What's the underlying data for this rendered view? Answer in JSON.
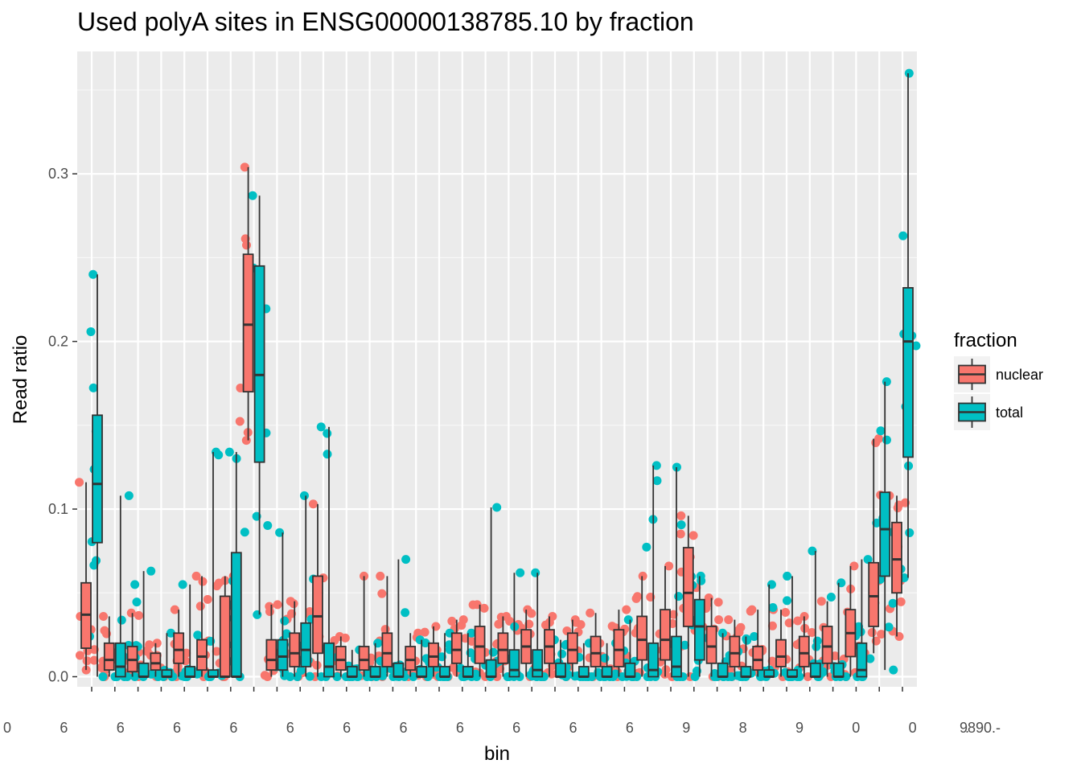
{
  "chart_data": {
    "type": "box",
    "title": "Used polyA sites in ENSG00000138785.10 by fraction",
    "xlabel": "bin",
    "ylabel": "Read ratio",
    "ylim": [
      -0.006,
      0.373
    ],
    "yticks": [
      0.0,
      0.1,
      0.2,
      0.3
    ],
    "ytick_labels": [
      "0.0",
      "0.1",
      "0.2",
      "0.3"
    ],
    "grid": true,
    "legend": {
      "title": "fraction",
      "position": "right",
      "entries": [
        {
          "name": "nuclear",
          "color": "#F8766D"
        },
        {
          "name": "total",
          "color": "#00BFC4"
        }
      ]
    },
    "bin_count": 36,
    "xtick_labels_overlapped": [
      "0",
      "6",
      "6",
      "6",
      "6",
      "6",
      "6",
      "6",
      "6",
      "6",
      "6",
      "6",
      "9",
      "8",
      "9",
      "0",
      "0",
      "."
    ],
    "xtick_label_tail": "9890.-",
    "series": [
      {
        "name": "nuclear",
        "color": "#F8766D",
        "boxes": [
          {
            "bin": 1,
            "q1": 0.017,
            "median": 0.037,
            "q3": 0.056,
            "low": 0.004,
            "high": 0.116
          },
          {
            "bin": 2,
            "q1": 0.004,
            "median": 0.01,
            "q3": 0.02,
            "low": 0.0,
            "high": 0.036
          },
          {
            "bin": 3,
            "q1": 0.003,
            "median": 0.01,
            "q3": 0.018,
            "low": 0.0,
            "high": 0.038
          },
          {
            "bin": 4,
            "q1": 0.004,
            "median": 0.008,
            "q3": 0.014,
            "low": 0.0,
            "high": 0.02
          },
          {
            "bin": 5,
            "q1": 0.008,
            "median": 0.016,
            "q3": 0.026,
            "low": 0.0,
            "high": 0.04
          },
          {
            "bin": 6,
            "q1": 0.004,
            "median": 0.012,
            "q3": 0.022,
            "low": 0.0,
            "high": 0.06
          },
          {
            "bin": 7,
            "q1": 0.0,
            "median": 0.0,
            "q3": 0.048,
            "low": 0.0,
            "high": 0.06
          },
          {
            "bin": 8,
            "q1": 0.17,
            "median": 0.21,
            "q3": 0.252,
            "low": 0.141,
            "high": 0.304
          },
          {
            "bin": 9,
            "q1": 0.004,
            "median": 0.01,
            "q3": 0.022,
            "low": 0.0,
            "high": 0.043
          },
          {
            "bin": 10,
            "q1": 0.006,
            "median": 0.014,
            "q3": 0.026,
            "low": 0.0,
            "high": 0.045
          },
          {
            "bin": 11,
            "q1": 0.014,
            "median": 0.036,
            "q3": 0.06,
            "low": 0.0,
            "high": 0.103
          },
          {
            "bin": 12,
            "q1": 0.004,
            "median": 0.01,
            "q3": 0.018,
            "low": 0.0,
            "high": 0.024
          },
          {
            "bin": 13,
            "q1": 0.004,
            "median": 0.01,
            "q3": 0.018,
            "low": 0.0,
            "high": 0.06
          },
          {
            "bin": 14,
            "q1": 0.006,
            "median": 0.014,
            "q3": 0.026,
            "low": 0.0,
            "high": 0.06
          },
          {
            "bin": 15,
            "q1": 0.004,
            "median": 0.01,
            "q3": 0.018,
            "low": 0.0,
            "high": 0.026
          },
          {
            "bin": 16,
            "q1": 0.006,
            "median": 0.012,
            "q3": 0.02,
            "low": 0.0,
            "high": 0.03
          },
          {
            "bin": 17,
            "q1": 0.008,
            "median": 0.016,
            "q3": 0.026,
            "low": 0.0,
            "high": 0.034
          },
          {
            "bin": 18,
            "q1": 0.008,
            "median": 0.018,
            "q3": 0.03,
            "low": 0.0,
            "high": 0.043
          },
          {
            "bin": 19,
            "q1": 0.008,
            "median": 0.016,
            "q3": 0.026,
            "low": 0.0,
            "high": 0.036
          },
          {
            "bin": 20,
            "q1": 0.008,
            "median": 0.018,
            "q3": 0.028,
            "low": 0.0,
            "high": 0.04
          },
          {
            "bin": 21,
            "q1": 0.008,
            "median": 0.018,
            "q3": 0.028,
            "low": 0.0,
            "high": 0.036
          },
          {
            "bin": 22,
            "q1": 0.008,
            "median": 0.016,
            "q3": 0.026,
            "low": 0.0,
            "high": 0.034
          },
          {
            "bin": 23,
            "q1": 0.006,
            "median": 0.014,
            "q3": 0.024,
            "low": 0.0,
            "high": 0.038
          },
          {
            "bin": 24,
            "q1": 0.006,
            "median": 0.016,
            "q3": 0.028,
            "low": 0.0,
            "high": 0.04
          },
          {
            "bin": 25,
            "q1": 0.01,
            "median": 0.022,
            "q3": 0.036,
            "low": 0.0,
            "high": 0.06
          },
          {
            "bin": 26,
            "q1": 0.01,
            "median": 0.022,
            "q3": 0.04,
            "low": 0.0,
            "high": 0.066
          },
          {
            "bin": 27,
            "q1": 0.03,
            "median": 0.05,
            "q3": 0.077,
            "low": 0.0,
            "high": 0.096
          },
          {
            "bin": 28,
            "q1": 0.008,
            "median": 0.018,
            "q3": 0.03,
            "low": 0.0,
            "high": 0.047
          },
          {
            "bin": 29,
            "q1": 0.006,
            "median": 0.014,
            "q3": 0.024,
            "low": 0.0,
            "high": 0.034
          },
          {
            "bin": 30,
            "q1": 0.004,
            "median": 0.01,
            "q3": 0.018,
            "low": 0.0,
            "high": 0.04
          },
          {
            "bin": 31,
            "q1": 0.006,
            "median": 0.012,
            "q3": 0.022,
            "low": 0.0,
            "high": 0.04
          },
          {
            "bin": 32,
            "q1": 0.006,
            "median": 0.014,
            "q3": 0.024,
            "low": 0.0,
            "high": 0.036
          },
          {
            "bin": 33,
            "q1": 0.008,
            "median": 0.018,
            "q3": 0.03,
            "low": 0.0,
            "high": 0.045
          },
          {
            "bin": 34,
            "q1": 0.012,
            "median": 0.026,
            "q3": 0.04,
            "low": 0.0,
            "high": 0.066
          },
          {
            "bin": 35,
            "q1": 0.03,
            "median": 0.048,
            "q3": 0.068,
            "low": 0.014,
            "high": 0.142
          },
          {
            "bin": 36,
            "q1": 0.05,
            "median": 0.07,
            "q3": 0.092,
            "low": 0.024,
            "high": 0.108
          }
        ]
      },
      {
        "name": "total",
        "color": "#00BFC4",
        "boxes": [
          {
            "bin": 1,
            "q1": 0.08,
            "median": 0.115,
            "q3": 0.156,
            "low": 0.0,
            "high": 0.24
          },
          {
            "bin": 2,
            "q1": 0.0,
            "median": 0.006,
            "q3": 0.02,
            "low": 0.0,
            "high": 0.108
          },
          {
            "bin": 3,
            "q1": 0.0,
            "median": 0.0,
            "q3": 0.008,
            "low": 0.0,
            "high": 0.063
          },
          {
            "bin": 4,
            "q1": 0.0,
            "median": 0.0,
            "q3": 0.004,
            "low": 0.0,
            "high": 0.026
          },
          {
            "bin": 5,
            "q1": 0.0,
            "median": 0.0,
            "q3": 0.006,
            "low": 0.0,
            "high": 0.055
          },
          {
            "bin": 6,
            "q1": 0.0,
            "median": 0.0,
            "q3": 0.004,
            "low": 0.0,
            "high": 0.134
          },
          {
            "bin": 7,
            "q1": 0.0,
            "median": 0.0,
            "q3": 0.074,
            "low": 0.0,
            "high": 0.134
          },
          {
            "bin": 8,
            "q1": 0.128,
            "median": 0.18,
            "q3": 0.245,
            "low": 0.037,
            "high": 0.287
          },
          {
            "bin": 9,
            "q1": 0.004,
            "median": 0.012,
            "q3": 0.022,
            "low": 0.0,
            "high": 0.086
          },
          {
            "bin": 10,
            "q1": 0.006,
            "median": 0.016,
            "q3": 0.032,
            "low": 0.0,
            "high": 0.108
          },
          {
            "bin": 11,
            "q1": 0.0,
            "median": 0.006,
            "q3": 0.02,
            "low": 0.0,
            "high": 0.149
          },
          {
            "bin": 12,
            "q1": 0.0,
            "median": 0.0,
            "q3": 0.006,
            "low": 0.0,
            "high": 0.016
          },
          {
            "bin": 13,
            "q1": 0.0,
            "median": 0.0,
            "q3": 0.006,
            "low": 0.0,
            "high": 0.02
          },
          {
            "bin": 14,
            "q1": 0.0,
            "median": 0.0,
            "q3": 0.008,
            "low": 0.0,
            "high": 0.07
          },
          {
            "bin": 15,
            "q1": 0.0,
            "median": 0.0,
            "q3": 0.006,
            "low": 0.0,
            "high": 0.022
          },
          {
            "bin": 16,
            "q1": 0.0,
            "median": 0.0,
            "q3": 0.006,
            "low": 0.0,
            "high": 0.026
          },
          {
            "bin": 17,
            "q1": 0.0,
            "median": 0.0,
            "q3": 0.006,
            "low": 0.0,
            "high": 0.026
          },
          {
            "bin": 18,
            "q1": 0.0,
            "median": 0.0,
            "q3": 0.01,
            "low": 0.0,
            "high": 0.101
          },
          {
            "bin": 19,
            "q1": 0.0,
            "median": 0.004,
            "q3": 0.016,
            "low": 0.0,
            "high": 0.062
          },
          {
            "bin": 20,
            "q1": 0.0,
            "median": 0.004,
            "q3": 0.016,
            "low": 0.0,
            "high": 0.062
          },
          {
            "bin": 21,
            "q1": 0.0,
            "median": 0.0,
            "q3": 0.008,
            "low": 0.0,
            "high": 0.022
          },
          {
            "bin": 22,
            "q1": 0.0,
            "median": 0.0,
            "q3": 0.006,
            "low": 0.0,
            "high": 0.02
          },
          {
            "bin": 23,
            "q1": 0.0,
            "median": 0.0,
            "q3": 0.006,
            "low": 0.0,
            "high": 0.02
          },
          {
            "bin": 24,
            "q1": 0.0,
            "median": 0.0,
            "q3": 0.008,
            "low": 0.0,
            "high": 0.034
          },
          {
            "bin": 25,
            "q1": 0.0,
            "median": 0.004,
            "q3": 0.02,
            "low": 0.0,
            "high": 0.126
          },
          {
            "bin": 26,
            "q1": 0.0,
            "median": 0.006,
            "q3": 0.024,
            "low": 0.0,
            "high": 0.125
          },
          {
            "bin": 27,
            "q1": 0.01,
            "median": 0.03,
            "q3": 0.046,
            "low": 0.0,
            "high": 0.06
          },
          {
            "bin": 28,
            "q1": 0.0,
            "median": 0.0,
            "q3": 0.008,
            "low": 0.0,
            "high": 0.026
          },
          {
            "bin": 29,
            "q1": 0.0,
            "median": 0.0,
            "q3": 0.006,
            "low": 0.0,
            "high": 0.024
          },
          {
            "bin": 30,
            "q1": 0.0,
            "median": 0.0,
            "q3": 0.004,
            "low": 0.0,
            "high": 0.055
          },
          {
            "bin": 31,
            "q1": 0.0,
            "median": 0.0,
            "q3": 0.004,
            "low": 0.0,
            "high": 0.06
          },
          {
            "bin": 32,
            "q1": 0.0,
            "median": 0.0,
            "q3": 0.008,
            "low": 0.0,
            "high": 0.075
          },
          {
            "bin": 33,
            "q1": 0.0,
            "median": 0.0,
            "q3": 0.008,
            "low": 0.0,
            "high": 0.056
          },
          {
            "bin": 34,
            "q1": 0.0,
            "median": 0.004,
            "q3": 0.02,
            "low": 0.0,
            "high": 0.07
          },
          {
            "bin": 35,
            "q1": 0.06,
            "median": 0.088,
            "q3": 0.11,
            "low": 0.004,
            "high": 0.176
          },
          {
            "bin": 36,
            "q1": 0.131,
            "median": 0.2,
            "q3": 0.232,
            "low": 0.059,
            "high": 0.36
          }
        ]
      }
    ]
  }
}
